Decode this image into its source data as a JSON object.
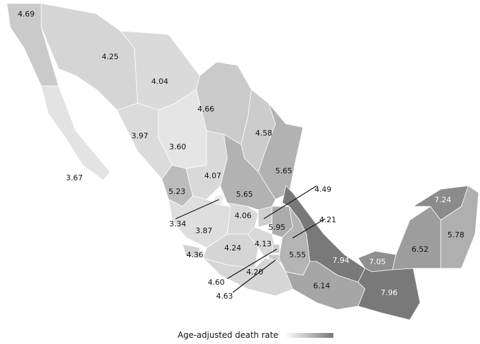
{
  "map": {
    "region": "Mexico",
    "color_scale": {
      "low": "#ececec",
      "high": "#777777"
    },
    "values": [
      "4.69",
      "3.67",
      "4.25",
      "4.04",
      "4.66",
      "4.58",
      "5.65",
      "3.97",
      "3.60",
      "4.07",
      "5.65",
      "5.23",
      "3.34",
      "3.87",
      "4.36",
      "4.24",
      "4.06",
      "4.49",
      "5.95",
      "4.13",
      "4.60",
      "4.63",
      "4.21",
      "5.55",
      "7.94",
      "4.20",
      "6.14",
      "7.05",
      "7.96",
      "6.52",
      "7.24",
      "5.78"
    ]
  },
  "legend": {
    "title": "Age-adjusted death rate"
  }
}
